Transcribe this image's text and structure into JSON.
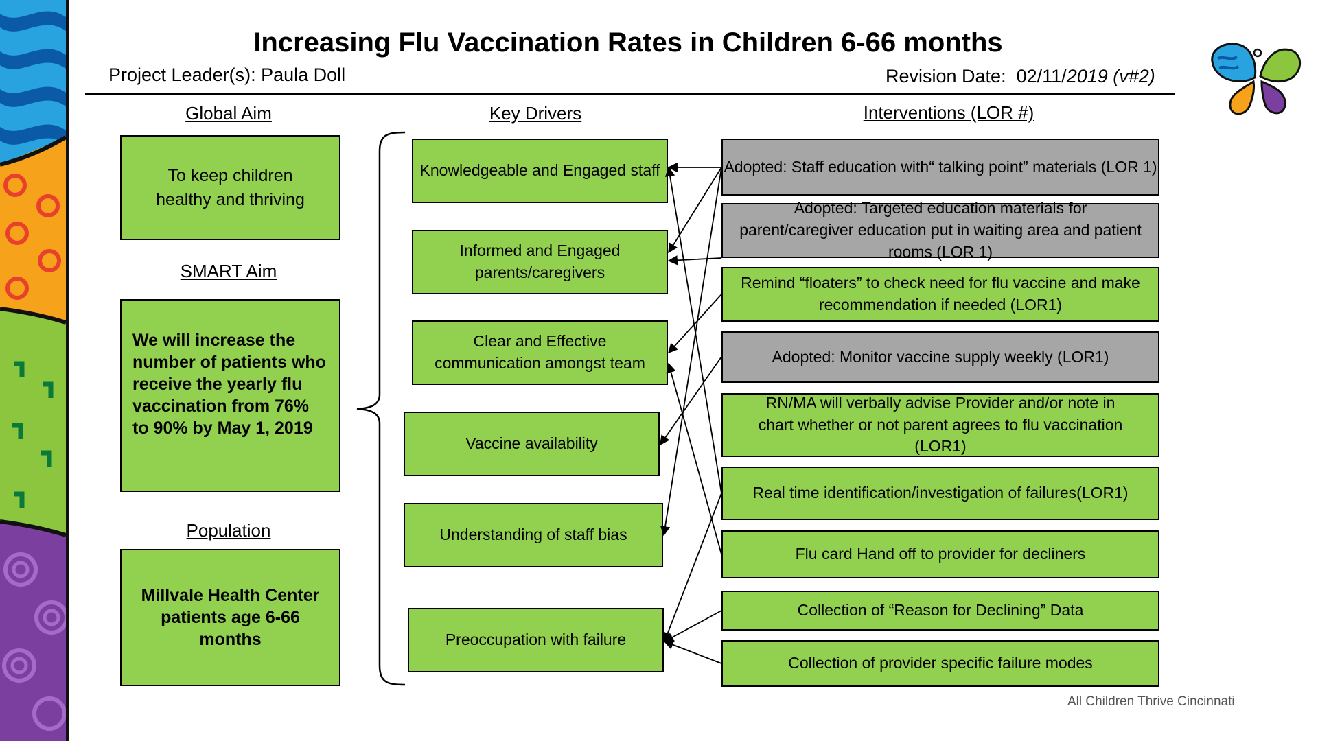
{
  "title": "Increasing Flu Vaccination Rates in Children 6-66 months",
  "project_leader": "Project Leader(s): Paula Doll",
  "revision": {
    "label": "Revision Date:",
    "date": "02/11/",
    "year": "2019",
    "version": "(v#2)"
  },
  "headers": {
    "global_aim": "Global Aim",
    "smart_aim": "SMART Aim",
    "population": "Population",
    "key_drivers": "Key Drivers",
    "interventions": "Interventions (LOR #)"
  },
  "global_aim": "To keep children healthy and thriving",
  "smart_aim": "We will increase the number of patients who receive the yearly flu vaccination from 76% to  90% by May 1, 2019",
  "population": "Millvale Health Center patients age 6-66 months",
  "drivers": [
    {
      "label": "Knowledgeable  and  Engaged  staff"
    },
    {
      "label": "Informed and Engaged parents/caregivers"
    },
    {
      "label": "Clear and Effective communication amongst  team"
    },
    {
      "label": "Vaccine availability"
    },
    {
      "label": "Understanding  of staff bias"
    },
    {
      "label": "Preoccupation  with failure"
    }
  ],
  "interventions": [
    {
      "label": "Adopted: Staff education with“ talking point” materials (LOR 1)",
      "status": "adopted"
    },
    {
      "label": "Adopted: Targeted education materials for parent/caregiver education  put in waiting area and patient rooms (LOR 1)",
      "status": "adopted"
    },
    {
      "label": "Remind  “floaters” to check need for flu vaccine and make recommendation  if needed (LOR1)",
      "status": "active"
    },
    {
      "label": "Adopted: Monitor vaccine supply weekly (LOR1)",
      "status": "adopted"
    },
    {
      "label": "RN/MA will verbally advise Provider and/or note in chart whether or not parent agrees to flu vaccination (LOR1)",
      "status": "active"
    },
    {
      "label": "Real time identification/investigation  of failures(LOR1)",
      "status": "active"
    },
    {
      "label": "Flu card Hand off to provider for decliners",
      "status": "active"
    },
    {
      "label": "Collection  of “Reason for Declining” Data",
      "status": "active"
    },
    {
      "label": "Collection  of provider  specific failure modes",
      "status": "active"
    }
  ],
  "footer": "All Children Thrive Cincinnati",
  "colors": {
    "box_green": "#92d050",
    "box_gray": "#a6a6a6"
  }
}
